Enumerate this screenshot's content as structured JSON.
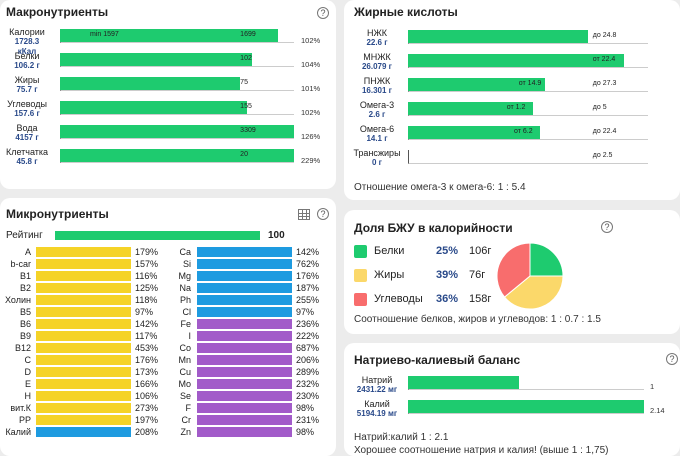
{
  "macro": {
    "title": "Макронутриенты",
    "rows": [
      {
        "label": "Калории",
        "v1": "1728.3",
        "v2": "кКал",
        "fill": 0.93,
        "inside_left": "min 1597",
        "inside_right": "1699",
        "pct": "102%"
      },
      {
        "label": "Белки",
        "v1": "106.2 г",
        "v2": "",
        "fill": 0.82,
        "inside_left": "",
        "inside_right": "102",
        "pct": "104%"
      },
      {
        "label": "Жиры",
        "v1": "75.7 г",
        "v2": "",
        "fill": 0.77,
        "inside_left": "",
        "inside_right": "75",
        "pct": "101%"
      },
      {
        "label": "Углеводы",
        "v1": "157.6 г",
        "v2": "",
        "fill": 0.8,
        "inside_left": "",
        "inside_right": "155",
        "pct": "102%"
      },
      {
        "label": "Вода",
        "v1": "4157 г",
        "v2": "",
        "fill": 1.0,
        "inside_left": "",
        "inside_right": "3309",
        "pct": "126%"
      },
      {
        "label": "Клетчатка",
        "v1": "45.8 г",
        "v2": "",
        "fill": 1.0,
        "inside_left": "",
        "inside_right": "20",
        "pct": "229%"
      }
    ]
  },
  "fatty": {
    "title": "Жирные кислоты",
    "rows": [
      {
        "label": "НЖК",
        "value": "22.6 г",
        "fill": 0.75,
        "note": "до 24.8"
      },
      {
        "label": "МНЖК",
        "value": "26.079 г",
        "fill": 0.9,
        "note": "от 22.4"
      },
      {
        "label": "ПНЖК",
        "value": "16.301 г",
        "fill": 0.57,
        "note": "от 14.9",
        "note2": "до 27.3"
      },
      {
        "label": "Омега-3",
        "value": "2.6 г",
        "fill": 0.52,
        "note": "от 1.2",
        "note2": "до 5"
      },
      {
        "label": "Омега-6",
        "value": "14.1 г",
        "fill": 0.55,
        "note": "от 6.2",
        "note2": "до 22.4"
      },
      {
        "label": "Трансжиры",
        "value": "0 г",
        "fill": 0.0,
        "note": "до 2.5"
      }
    ],
    "ratio": "Отношение омега-3 к омега-6: 1 : 5.4"
  },
  "micro": {
    "title": "Микронутриенты",
    "rating_label": "Рейтинг",
    "rating_value": "100",
    "left": [
      {
        "label": "A",
        "pct": "179%",
        "color": "#f5d327"
      },
      {
        "label": "b-car",
        "pct": "157%",
        "color": "#f5d327"
      },
      {
        "label": "B1",
        "pct": "116%",
        "color": "#f5d327"
      },
      {
        "label": "B2",
        "pct": "125%",
        "color": "#f5d327"
      },
      {
        "label": "Холин",
        "pct": "118%",
        "color": "#f5d327"
      },
      {
        "label": "B5",
        "pct": "97%",
        "color": "#f5d327"
      },
      {
        "label": "B6",
        "pct": "142%",
        "color": "#f5d327"
      },
      {
        "label": "B9",
        "pct": "117%",
        "color": "#f5d327"
      },
      {
        "label": "B12",
        "pct": "453%",
        "color": "#f5d327"
      },
      {
        "label": "C",
        "pct": "176%",
        "color": "#f5d327"
      },
      {
        "label": "D",
        "pct": "173%",
        "color": "#f5d327"
      },
      {
        "label": "E",
        "pct": "166%",
        "color": "#f5d327"
      },
      {
        "label": "H",
        "pct": "106%",
        "color": "#f5d327"
      },
      {
        "label": "вит.К",
        "pct": "273%",
        "color": "#f5d327"
      },
      {
        "label": "PP",
        "pct": "197%",
        "color": "#f5d327"
      },
      {
        "label": "Калий",
        "pct": "208%",
        "color": "#1e9be0"
      }
    ],
    "right": [
      {
        "label": "Ca",
        "pct": "142%",
        "color": "#1e9be0"
      },
      {
        "label": "Si",
        "pct": "762%",
        "color": "#1e9be0"
      },
      {
        "label": "Mg",
        "pct": "176%",
        "color": "#1e9be0"
      },
      {
        "label": "Na",
        "pct": "187%",
        "color": "#1e9be0"
      },
      {
        "label": "Ph",
        "pct": "255%",
        "color": "#1e9be0"
      },
      {
        "label": "Cl",
        "pct": "97%",
        "color": "#1e9be0"
      },
      {
        "label": "Fe",
        "pct": "236%",
        "color": "#a25bc9"
      },
      {
        "label": "I",
        "pct": "222%",
        "color": "#a25bc9"
      },
      {
        "label": "Co",
        "pct": "687%",
        "color": "#a25bc9"
      },
      {
        "label": "Mn",
        "pct": "206%",
        "color": "#a25bc9"
      },
      {
        "label": "Cu",
        "pct": "289%",
        "color": "#a25bc9"
      },
      {
        "label": "Mo",
        "pct": "232%",
        "color": "#a25bc9"
      },
      {
        "label": "Se",
        "pct": "230%",
        "color": "#a25bc9"
      },
      {
        "label": "F",
        "pct": "98%",
        "color": "#a25bc9"
      },
      {
        "label": "Cr",
        "pct": "231%",
        "color": "#a25bc9"
      },
      {
        "label": "Zn",
        "pct": "98%",
        "color": "#a25bc9"
      }
    ]
  },
  "bju": {
    "title": "Доля БЖУ в калорийности",
    "items": [
      {
        "label": "Белки",
        "pct": "25%",
        "grams": "106г",
        "color": "#1ecb6f"
      },
      {
        "label": "Жиры",
        "pct": "39%",
        "grams": "76г",
        "color": "#fbd86a"
      },
      {
        "label": "Углеводы",
        "pct": "36%",
        "grams": "158г",
        "color": "#f86d6d"
      }
    ],
    "ratio": "Соотношение белков, жиров и углеводов: 1 : 0.7 : 1.5"
  },
  "nak": {
    "title": "Натриево-калиевый баланс",
    "rows": [
      {
        "label": "Натрий",
        "value": "2431.22 мг",
        "fill": 0.47,
        "note": "1"
      },
      {
        "label": "Калий",
        "value": "5194.19 мг",
        "fill": 1.0,
        "note": "2.14"
      }
    ],
    "ratio": "Натрий:калий 1 : 2.1",
    "comment": "Хорошее соотношение натрия и калия! (выше 1 : 1,75)"
  }
}
